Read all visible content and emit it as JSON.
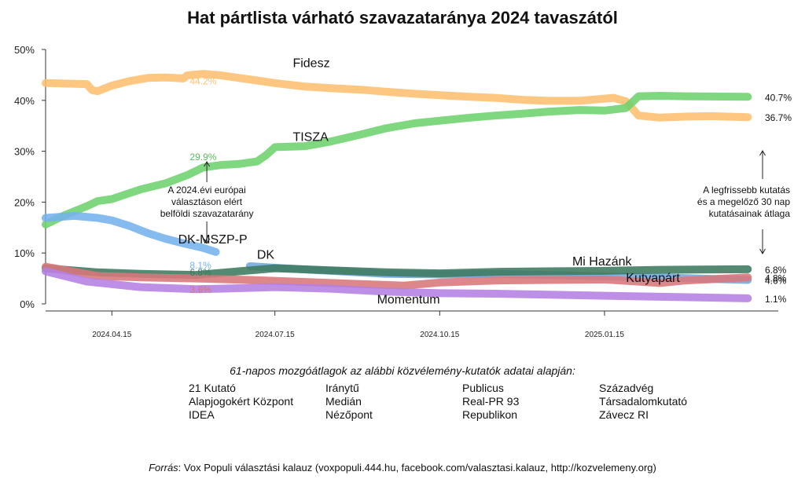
{
  "title": "Hat pártlista várható szavazataránya 2024 tavaszától",
  "chart_data": {
    "type": "line",
    "title": "Hat pártlista várható szavazataránya 2024 tavaszától",
    "xlabel": "",
    "ylabel": "",
    "xlim": [
      "2024-03-09",
      "2025-04-22"
    ],
    "ylim": [
      0,
      50
    ],
    "y_unit": "%",
    "y_ticks": [
      0,
      10,
      20,
      30,
      40,
      50
    ],
    "y_tick_labels": [
      "0%",
      "10%",
      "20%",
      "30%",
      "40%",
      "50%"
    ],
    "x_ticks": [
      "2024-04-15",
      "2024-07-15",
      "2024-10-15",
      "2025-01-15"
    ],
    "x_tick_labels": [
      "2024.04.15",
      "2024.07.15",
      "2024.10.15",
      "2025.01.15"
    ],
    "grid": false,
    "series": [
      {
        "name": "Fidesz",
        "color": "#fdbf6f",
        "points": [
          [
            "2024-03-09",
            43.4
          ],
          [
            "2024-04-01",
            43.2
          ],
          [
            "2024-04-04",
            42.0
          ],
          [
            "2024-04-07",
            41.8
          ],
          [
            "2024-04-15",
            42.9
          ],
          [
            "2024-04-25",
            43.8
          ],
          [
            "2024-05-05",
            44.4
          ],
          [
            "2024-05-15",
            44.5
          ],
          [
            "2024-05-25",
            44.3
          ],
          [
            "2024-05-27",
            44.9
          ],
          [
            "2024-06-05",
            45.2
          ],
          [
            "2024-06-15",
            44.9
          ],
          [
            "2024-06-25",
            44.4
          ],
          [
            "2024-07-05",
            43.9
          ],
          [
            "2024-07-15",
            43.4
          ],
          [
            "2024-08-01",
            42.7
          ],
          [
            "2024-08-15",
            42.4
          ],
          [
            "2024-09-01",
            42.1
          ],
          [
            "2024-09-15",
            41.7
          ],
          [
            "2024-10-01",
            41.3
          ],
          [
            "2024-10-15",
            41.0
          ],
          [
            "2024-11-01",
            40.7
          ],
          [
            "2024-11-15",
            40.5
          ],
          [
            "2024-12-01",
            40.1
          ],
          [
            "2024-12-15",
            39.9
          ],
          [
            "2025-01-01",
            39.9
          ],
          [
            "2025-01-20",
            40.5
          ],
          [
            "2025-01-27",
            39.8
          ],
          [
            "2025-02-03",
            37.0
          ],
          [
            "2025-02-15",
            36.6
          ],
          [
            "2025-03-01",
            36.8
          ],
          [
            "2025-03-15",
            36.9
          ],
          [
            "2025-04-05",
            36.7
          ]
        ]
      },
      {
        "name": "TISZA",
        "color": "#6dd36d",
        "points": [
          [
            "2024-03-09",
            15.6
          ],
          [
            "2024-03-20",
            17.5
          ],
          [
            "2024-04-01",
            19.2
          ],
          [
            "2024-04-07",
            20.2
          ],
          [
            "2024-04-15",
            20.6
          ],
          [
            "2024-05-01",
            22.5
          ],
          [
            "2024-05-15",
            23.7
          ],
          [
            "2024-05-27",
            25.3
          ],
          [
            "2024-06-05",
            26.8
          ],
          [
            "2024-06-15",
            27.3
          ],
          [
            "2024-06-25",
            27.5
          ],
          [
            "2024-07-05",
            28.0
          ],
          [
            "2024-07-10",
            29.2
          ],
          [
            "2024-07-15",
            30.8
          ],
          [
            "2024-08-01",
            31.0
          ],
          [
            "2024-08-15",
            31.9
          ],
          [
            "2024-09-01",
            33.3
          ],
          [
            "2024-09-15",
            34.5
          ],
          [
            "2024-10-01",
            35.5
          ],
          [
            "2024-10-15",
            36.0
          ],
          [
            "2024-11-01",
            36.6
          ],
          [
            "2024-11-15",
            37.0
          ],
          [
            "2024-12-01",
            37.4
          ],
          [
            "2024-12-15",
            37.8
          ],
          [
            "2025-01-01",
            38.1
          ],
          [
            "2025-01-15",
            38.0
          ],
          [
            "2025-01-27",
            38.5
          ],
          [
            "2025-02-03",
            40.8
          ],
          [
            "2025-02-15",
            40.9
          ],
          [
            "2025-03-01",
            40.8
          ],
          [
            "2025-04-05",
            40.7
          ]
        ]
      },
      {
        "name": "DK-MSZP-P",
        "color": "#74b2ec",
        "points": [
          [
            "2024-03-09",
            16.9
          ],
          [
            "2024-03-25",
            17.3
          ],
          [
            "2024-04-07",
            16.9
          ],
          [
            "2024-04-15",
            16.4
          ],
          [
            "2024-04-25",
            15.3
          ],
          [
            "2024-05-05",
            13.9
          ],
          [
            "2024-05-15",
            12.8
          ],
          [
            "2024-05-25",
            11.9
          ],
          [
            "2024-06-05",
            11.0
          ],
          [
            "2024-06-12",
            10.2
          ]
        ]
      },
      {
        "name": "DK",
        "color": "#6fa8dc",
        "points": [
          [
            "2024-07-01",
            7.4
          ],
          [
            "2024-07-15",
            7.1
          ],
          [
            "2024-08-15",
            6.5
          ],
          [
            "2024-09-15",
            5.9
          ],
          [
            "2024-10-15",
            5.8
          ],
          [
            "2024-11-15",
            5.9
          ],
          [
            "2024-12-15",
            5.7
          ],
          [
            "2025-01-15",
            5.4
          ],
          [
            "2025-02-15",
            5.2
          ],
          [
            "2025-04-05",
            4.7
          ]
        ]
      },
      {
        "name": "Mi Hazánk",
        "color": "#3d7a5f",
        "points": [
          [
            "2024-03-09",
            7.0
          ],
          [
            "2024-04-07",
            6.2
          ],
          [
            "2024-05-01",
            5.9
          ],
          [
            "2024-06-01",
            5.7
          ],
          [
            "2024-06-25",
            6.4
          ],
          [
            "2024-07-15",
            7.0
          ],
          [
            "2024-08-15",
            6.6
          ],
          [
            "2024-09-15",
            6.2
          ],
          [
            "2024-10-15",
            6.0
          ],
          [
            "2024-11-15",
            6.3
          ],
          [
            "2024-12-15",
            6.4
          ],
          [
            "2025-01-15",
            6.5
          ],
          [
            "2025-02-15",
            6.7
          ],
          [
            "2025-04-05",
            6.8
          ]
        ]
      },
      {
        "name": "Kutyapárt",
        "color": "#d9767a",
        "points": [
          [
            "2024-03-09",
            7.3
          ],
          [
            "2024-04-07",
            5.5
          ],
          [
            "2024-05-01",
            5.2
          ],
          [
            "2024-06-01",
            5.0
          ],
          [
            "2024-07-01",
            4.7
          ],
          [
            "2024-08-01",
            4.3
          ],
          [
            "2024-09-01",
            3.9
          ],
          [
            "2024-09-25",
            3.6
          ],
          [
            "2024-10-15",
            4.2
          ],
          [
            "2024-11-15",
            4.6
          ],
          [
            "2024-12-15",
            4.7
          ],
          [
            "2025-01-15",
            4.8
          ],
          [
            "2025-02-15",
            4.1
          ],
          [
            "2025-03-01",
            4.6
          ],
          [
            "2025-04-05",
            5.2
          ]
        ]
      },
      {
        "name": "Momentum",
        "color": "#b57fe2",
        "points": [
          [
            "2024-03-09",
            6.4
          ],
          [
            "2024-04-01",
            4.4
          ],
          [
            "2024-05-01",
            3.3
          ],
          [
            "2024-06-01",
            2.9
          ],
          [
            "2024-06-15",
            3.0
          ],
          [
            "2024-07-15",
            3.3
          ],
          [
            "2024-08-15",
            3.0
          ],
          [
            "2024-09-15",
            2.4
          ],
          [
            "2024-10-15",
            2.1
          ],
          [
            "2024-11-15",
            2.0
          ],
          [
            "2024-12-15",
            1.8
          ],
          [
            "2025-01-15",
            1.6
          ],
          [
            "2025-02-15",
            1.4
          ],
          [
            "2025-04-05",
            1.1
          ]
        ]
      }
    ],
    "series_labels": [
      {
        "text": "Fidesz",
        "series": "Fidesz",
        "at": [
          "2024-07-25",
          46.5
        ]
      },
      {
        "text": "TISZA",
        "series": "TISZA",
        "at": [
          "2024-07-25",
          32.0
        ]
      },
      {
        "text": "DK-MSZP-P",
        "series": "DK-MSZP-P",
        "at": [
          "2024-05-22",
          11.9
        ]
      },
      {
        "text": "DK",
        "series": "DK",
        "at": [
          "2024-07-05",
          8.9
        ]
      },
      {
        "text": "Mi Hazánk",
        "series": "Mi Hazánk",
        "at": [
          "2024-12-28",
          7.6
        ]
      },
      {
        "text": "Kutyapárt",
        "series": "Kutyapárt",
        "at": [
          "2025-01-27",
          4.3
        ]
      },
      {
        "text": "Momentum",
        "series": "Momentum",
        "at": [
          "2024-09-10",
          0.1
        ]
      }
    ],
    "ep2024_values": [
      {
        "series": "Fidesz",
        "text": "44.2%",
        "color": "#fdbf6f",
        "at": [
          "2024-06-01",
          43.9
        ]
      },
      {
        "series": "TISZA",
        "text": "29.9%",
        "color": "#5cb85c",
        "at": [
          "2024-06-01",
          29.0
        ]
      },
      {
        "series": "DK-MSZP-P",
        "text": "8.1%",
        "color": "#74b2ec",
        "at": [
          "2024-06-01",
          7.7
        ]
      },
      {
        "series": "Mi Hazánk",
        "text": "6.8%",
        "color": "#3d7a5f",
        "at": [
          "2024-06-01",
          6.3
        ]
      },
      {
        "series": "Momentum",
        "text": "3.7%",
        "color": "#b57fe2",
        "at": [
          "2024-06-01",
          2.9
        ]
      },
      {
        "series": "Kutyapárt",
        "text": "3.6%",
        "color": "#d9767a",
        "at": [
          "2024-06-01",
          2.9
        ]
      }
    ],
    "end_values": [
      {
        "series": "TISZA",
        "text": "40.7%",
        "at": [
          "2025-04-05",
          40.7
        ]
      },
      {
        "series": "Fidesz",
        "text": "36.7%",
        "at": [
          "2025-04-05",
          36.7
        ]
      },
      {
        "series": "Mi Hazánk",
        "text": "6.8%",
        "at": [
          "2025-04-05",
          6.8
        ]
      },
      {
        "series": "Kutyapárt",
        "text": "4.8%",
        "at": [
          "2025-04-05",
          5.2
        ]
      },
      {
        "series": "DK",
        "text": "4.6%",
        "at": [
          "2025-04-05",
          4.7
        ]
      },
      {
        "series": "Momentum",
        "text": "1.1%",
        "at": [
          "2025-04-05",
          1.1
        ]
      }
    ],
    "annotations": {
      "ep2024": [
        "A 2024.évi európai",
        "választáson elért",
        "belföldi szavazatarány"
      ],
      "latest": [
        "A legfrissebb kutatás",
        "és a megelőző 30 nap",
        "kutatásainak átlaga"
      ]
    }
  },
  "sources_heading": "61-napos mozgóátlagok az alábbi közvélemény-kutatók adatai alapján:",
  "pollsters": [
    "21 Kutató",
    "Iránytű",
    "Publicus",
    "Századvég",
    "Alapjogokért Központ",
    "Medián",
    "Real-PR 93",
    "Társadalomkutató",
    "IDEA",
    "Nézőpont",
    "Republikon",
    "Závecz RI"
  ],
  "footer": {
    "label": "Forrás",
    "text": ": Vox Populi választási kalauz (voxpopuli.444.hu, facebook.com/valasztasi.kalauz, http://kozvelemeny.org)"
  }
}
